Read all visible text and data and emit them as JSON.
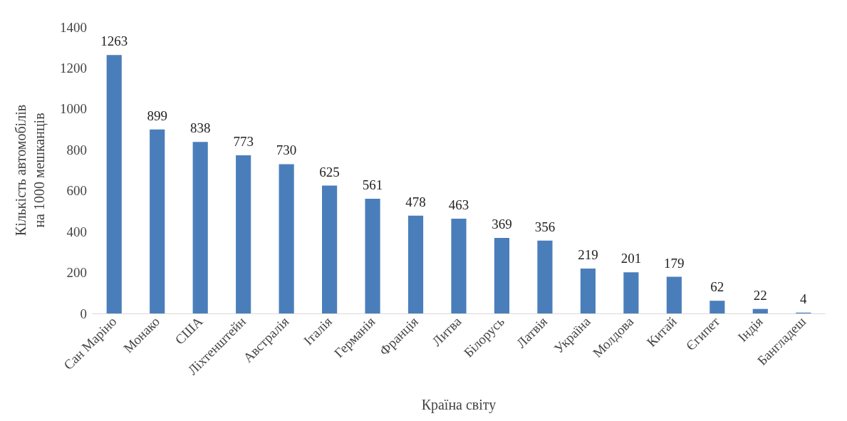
{
  "chart_data": {
    "type": "bar",
    "xlabel": "Країна світу",
    "ylabel": "Кількість автомобілів\nна 1000 мешканців",
    "categories": [
      "Сан Маріно",
      "Монако",
      "США",
      "Ліхтенштейн",
      "Австралія",
      "Італія",
      "Германія",
      "Франція",
      "Литва",
      "Білорусь",
      "Латвія",
      "Україна",
      "Молдова",
      "Китай",
      "Єгипет",
      "Індія",
      "Бангладеш"
    ],
    "values": [
      1263,
      899,
      838,
      773,
      730,
      625,
      561,
      478,
      463,
      369,
      356,
      219,
      201,
      179,
      62,
      22,
      4
    ],
    "color": "#4a7ebb",
    "ylim": [
      0,
      1400
    ],
    "yticks": [
      0,
      200,
      400,
      600,
      800,
      1000,
      1200,
      1400
    ],
    "grid": false,
    "data_labels": true
  }
}
